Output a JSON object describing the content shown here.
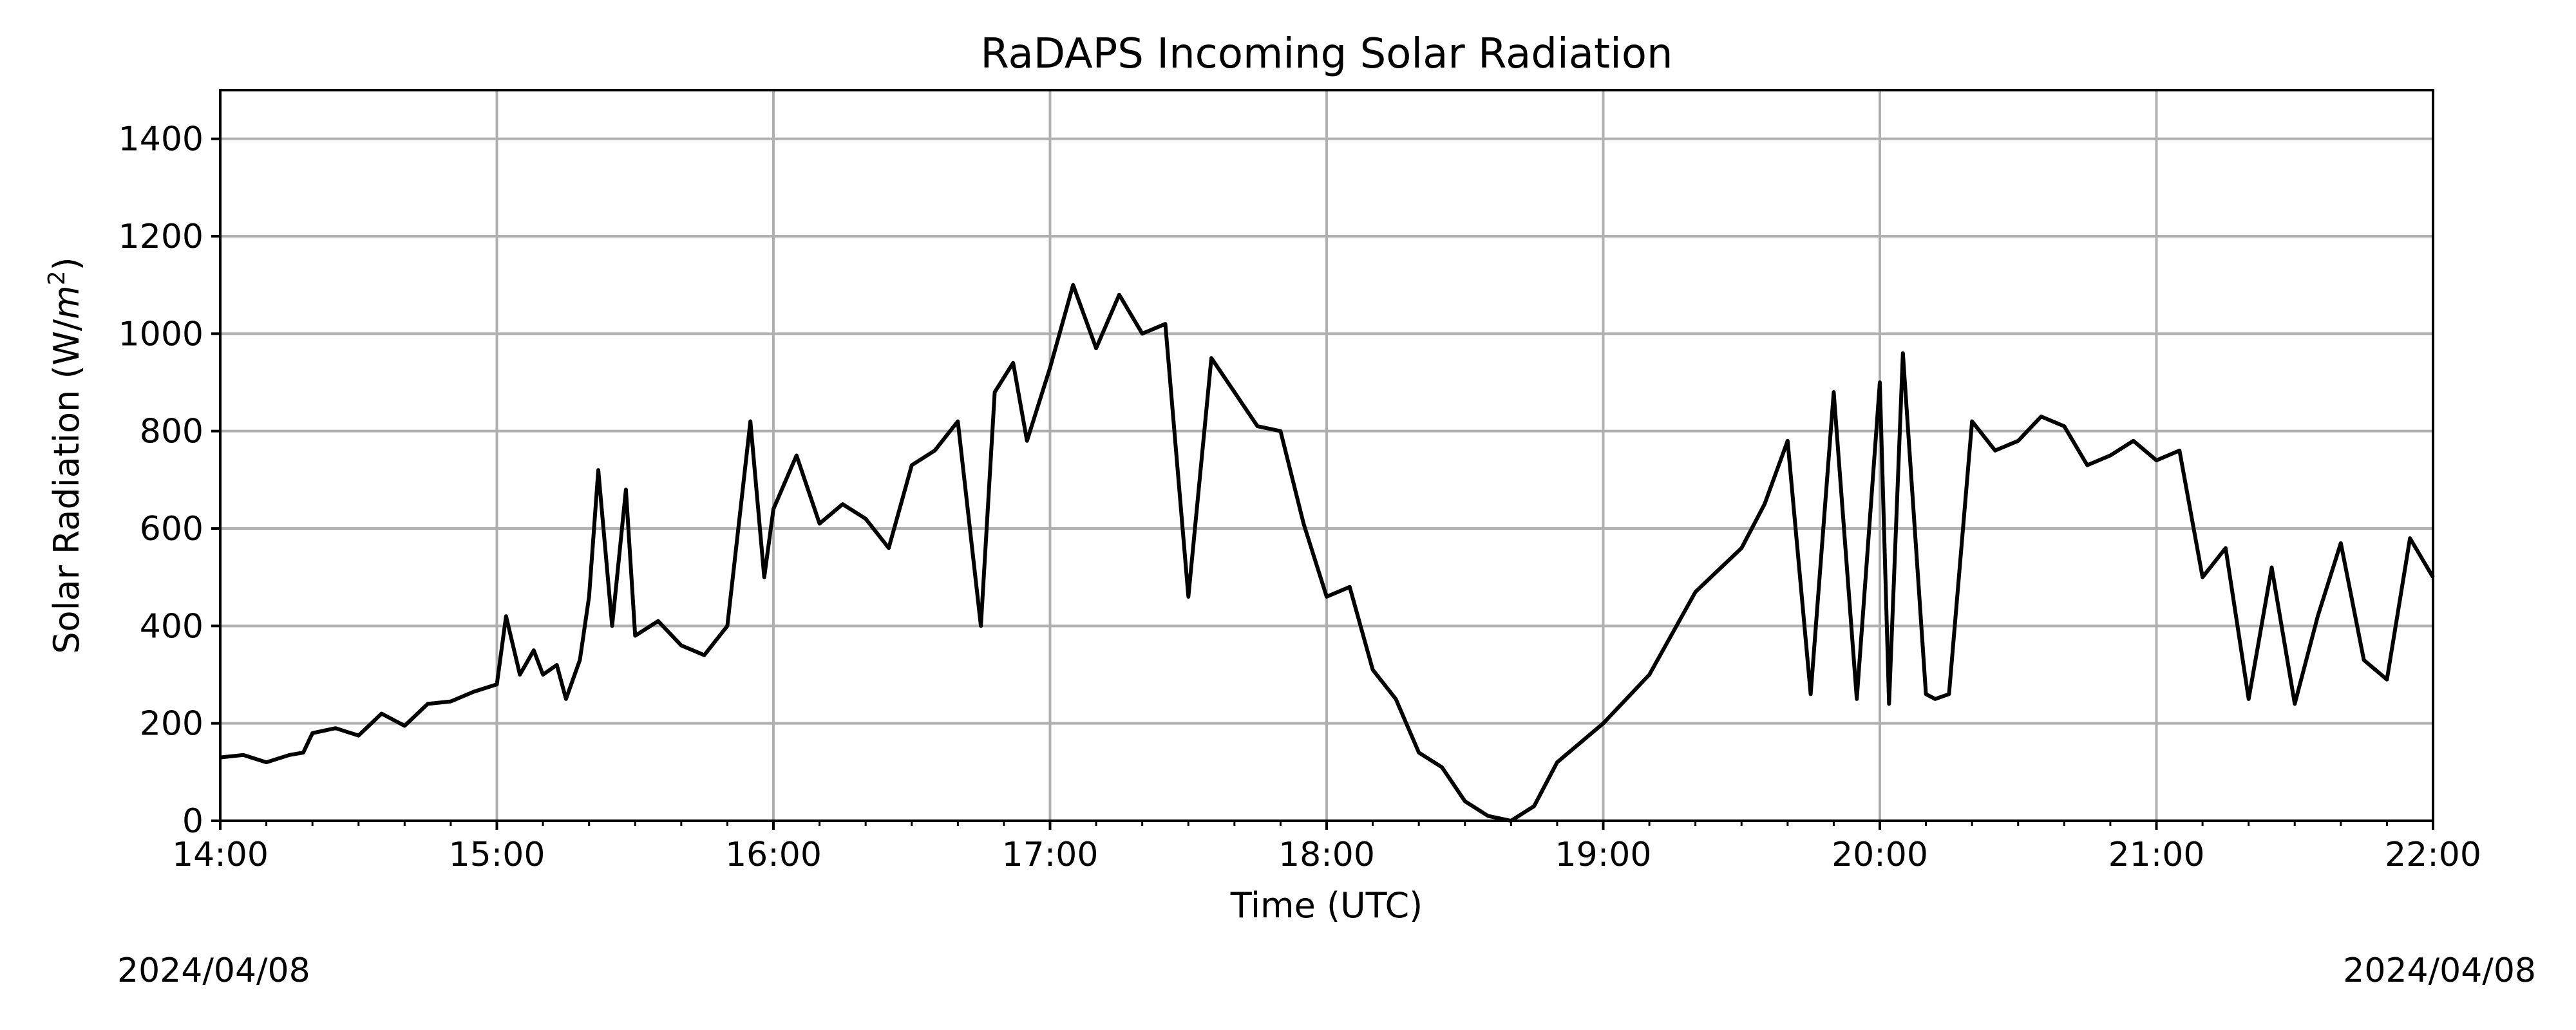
{
  "chart_data": {
    "type": "line",
    "title": "RaDAPS Incoming Solar Radiation",
    "xlabel": "Time (UTC)",
    "ylabel_prefix": "Solar Radiation (W/",
    "ylabel_unit": "m",
    "ylabel_exp": "2",
    "ylabel_suffix": ")",
    "xlim": [
      "14:00",
      "22:00"
    ],
    "ylim": [
      0,
      1500
    ],
    "grid": true,
    "x_ticks": [
      "14:00",
      "15:00",
      "16:00",
      "17:00",
      "18:00",
      "19:00",
      "20:00",
      "21:00",
      "22:00"
    ],
    "y_ticks": [
      0,
      200,
      400,
      600,
      800,
      1000,
      1200,
      1400
    ],
    "date_left": "2024/04/08",
    "date_right": "2024/04/08",
    "line_color": "#000000",
    "grid_color": "#b0b0b0",
    "series": [
      {
        "x": [
          "14:00",
          "14:05",
          "14:10",
          "14:15",
          "14:18",
          "14:20",
          "14:25",
          "14:30",
          "14:35",
          "14:40",
          "14:45",
          "14:50",
          "14:55",
          "15:00",
          "15:02",
          "15:05",
          "15:08",
          "15:10",
          "15:13",
          "15:15",
          "15:18",
          "15:20",
          "15:22",
          "15:25",
          "15:28",
          "15:30",
          "15:35",
          "15:40",
          "15:45",
          "15:50",
          "15:55",
          "15:58",
          "16:00",
          "16:05",
          "16:10",
          "16:15",
          "16:20",
          "16:25",
          "16:30",
          "16:35",
          "16:40",
          "16:45",
          "16:48",
          "16:52",
          "16:55",
          "17:00",
          "17:05",
          "17:10",
          "17:15",
          "17:20",
          "17:25",
          "17:30",
          "17:35",
          "17:40",
          "17:45",
          "17:50",
          "17:55",
          "18:00",
          "18:05",
          "18:10",
          "18:15",
          "18:20",
          "18:25",
          "18:30",
          "18:35",
          "18:40",
          "18:45",
          "18:50",
          "18:55",
          "19:00",
          "19:10",
          "19:20",
          "19:30",
          "19:35",
          "19:40",
          "19:45",
          "19:50",
          "19:55",
          "20:00",
          "20:02",
          "20:05",
          "20:10",
          "20:12",
          "20:15",
          "20:20",
          "20:25",
          "20:30",
          "20:35",
          "20:40",
          "20:45",
          "20:50",
          "20:55",
          "21:00",
          "21:05",
          "21:10",
          "21:15",
          "21:20",
          "21:25",
          "21:30",
          "21:35",
          "21:40",
          "21:45",
          "21:50",
          "21:55",
          "22:00"
        ],
        "y": [
          130,
          135,
          120,
          135,
          140,
          180,
          190,
          175,
          220,
          195,
          240,
          245,
          265,
          280,
          420,
          300,
          350,
          300,
          320,
          250,
          330,
          460,
          720,
          400,
          680,
          380,
          410,
          360,
          340,
          400,
          820,
          500,
          640,
          750,
          610,
          650,
          620,
          560,
          730,
          760,
          820,
          400,
          880,
          940,
          780,
          930,
          1100,
          970,
          1080,
          1000,
          1020,
          460,
          950,
          880,
          810,
          800,
          610,
          460,
          480,
          310,
          250,
          140,
          110,
          40,
          10,
          0,
          30,
          120,
          160,
          200,
          300,
          470,
          560,
          650,
          780,
          260,
          880,
          250,
          900,
          240,
          960,
          260,
          250,
          260,
          820,
          760,
          780,
          830,
          810,
          730,
          750,
          780,
          740,
          760,
          500,
          560,
          250,
          520,
          240,
          420,
          570,
          330,
          290,
          580,
          500
        ]
      }
    ]
  }
}
